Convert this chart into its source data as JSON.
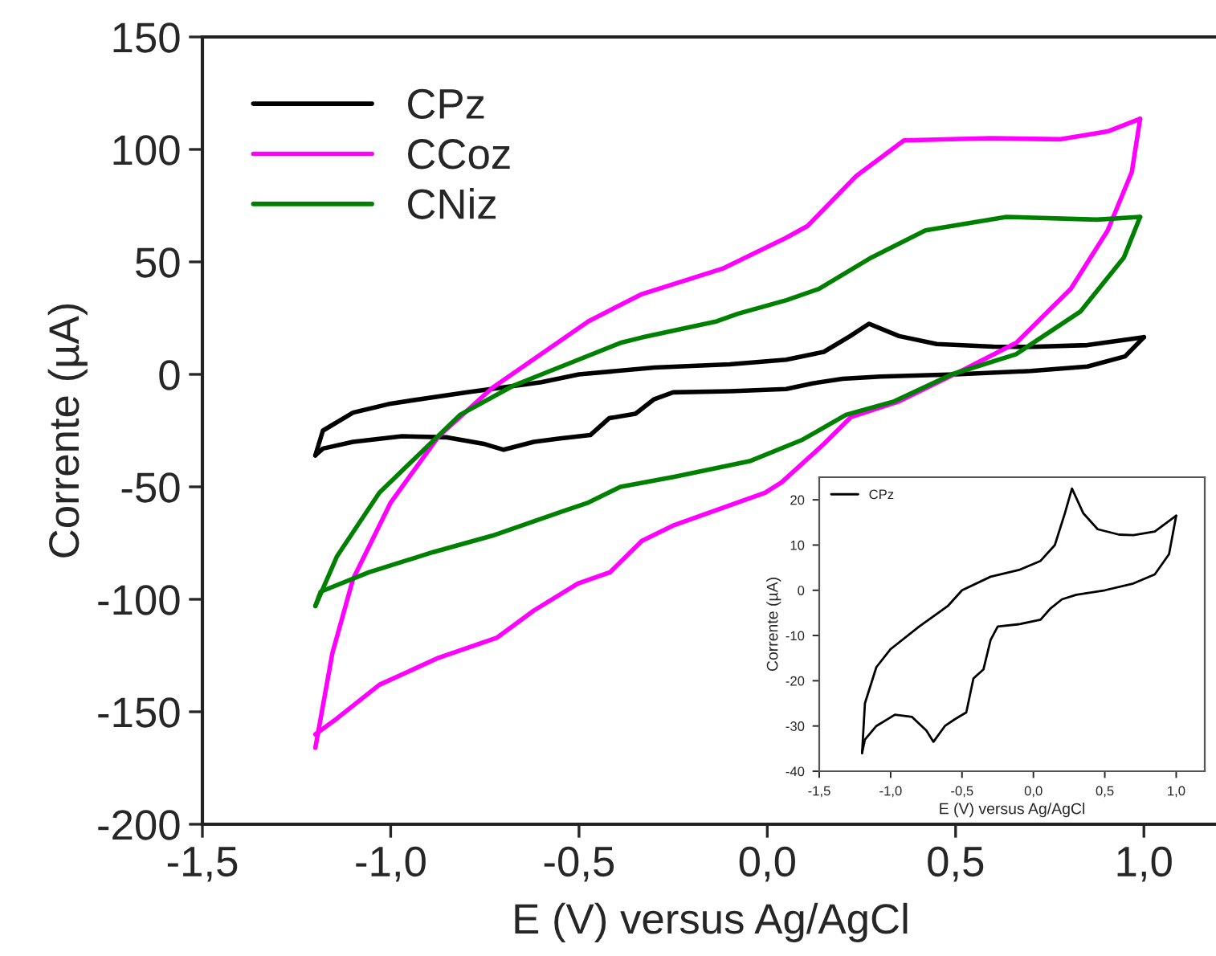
{
  "chart_data": [
    {
      "type": "line",
      "xlabel": "E (V) versus Ag/AgCl",
      "ylabel": "Corrente (µA)",
      "legend": "top left",
      "grid": false,
      "xlim": [
        -1.5,
        1.2
      ],
      "ylim": [
        -200,
        150
      ],
      "xticks": [
        {
          "value": -1.5,
          "label": "-1,5"
        },
        {
          "value": -1.0,
          "label": "-1,0"
        },
        {
          "value": -0.5,
          "label": "-0,5"
        },
        {
          "value": 0.0,
          "label": "0,0"
        },
        {
          "value": 0.5,
          "label": "0,5"
        },
        {
          "value": 1.0,
          "label": "1,0"
        }
      ],
      "yticks": [
        -200,
        -150,
        -100,
        -50,
        0,
        50,
        100,
        150
      ],
      "series": [
        {
          "name": "CPz",
          "color": "#000000",
          "x": [
            -1.2,
            -1.18,
            -1.1,
            -1.0,
            -0.8,
            -0.6,
            -0.5,
            -0.3,
            -0.1,
            0.05,
            0.15,
            0.22,
            0.27,
            0.35,
            0.45,
            0.6,
            0.7,
            0.85,
            1.0
          ],
          "values": [
            -36,
            -25,
            -17,
            -13,
            -8,
            -3.5,
            0,
            3,
            4.5,
            6.5,
            10,
            17,
            22.5,
            17,
            13.5,
            12.3,
            12.2,
            13,
            16.5
          ]
        },
        {
          "color": "#000000",
          "x": [
            -1.2,
            -1.18,
            -1.1,
            -0.97,
            -0.85,
            -0.75,
            -0.7,
            -0.62,
            -0.55,
            -0.47,
            -0.42,
            -0.35,
            -0.3,
            -0.25,
            -0.1,
            0.05,
            0.12,
            0.2,
            0.3,
            0.5,
            0.7,
            0.85,
            0.95,
            1.0
          ],
          "values": [
            -36,
            -33,
            -30,
            -27.5,
            -28,
            -31,
            -33.5,
            -30,
            -28.5,
            -27,
            -19.5,
            -17.5,
            -11,
            -8,
            -7.5,
            -6.5,
            -4,
            -2,
            -1,
            0,
            1.5,
            3.5,
            8,
            16.5
          ]
        },
        {
          "name": "CCoz",
          "color": "#ff00ff",
          "x": [
            -1.2,
            -1.155,
            -1.1,
            -1.0,
            -0.873,
            -0.73,
            -0.475,
            -0.333,
            -0.119,
            0.05,
            0.107,
            0.235,
            0.363,
            0.593,
            0.776,
            0.904,
            0.99
          ],
          "values": [
            -166,
            -124,
            -91,
            -57,
            -27.6,
            -6,
            23.6,
            35.7,
            47,
            60.7,
            66,
            88,
            104,
            105,
            104.5,
            108,
            113.6
          ]
        },
        {
          "color": "#ff00ff",
          "x": [
            -1.2,
            -1.143,
            -1.03,
            -0.873,
            -0.717,
            -0.62,
            -0.503,
            -0.418,
            -0.333,
            -0.247,
            -0.006,
            0.038,
            0.15,
            0.222,
            0.35,
            0.52,
            0.661,
            0.806,
            0.904,
            0.968,
            0.99
          ],
          "values": [
            -160,
            -153,
            -138,
            -126,
            -117,
            -105,
            -93,
            -88,
            -74,
            -67,
            -52.6,
            -48,
            -31,
            -19,
            -12,
            2,
            14,
            38,
            64,
            90,
            113.6
          ]
        },
        {
          "name": "CNiz",
          "color": "#008000",
          "x": [
            -1.2,
            -1.143,
            -1.03,
            -0.816,
            -0.674,
            -0.39,
            -0.333,
            -0.134,
            -0.077,
            0.051,
            0.137,
            0.277,
            0.42,
            0.635,
            0.875,
            0.99
          ],
          "values": [
            -103,
            -81,
            -52.6,
            -18,
            -5,
            14,
            16.4,
            23.6,
            27,
            33,
            38,
            52,
            64,
            70,
            68.8,
            70
          ]
        },
        {
          "color": "#008000",
          "x": [
            -1.2,
            -1.186,
            -1.058,
            -0.887,
            -0.73,
            -0.546,
            -0.475,
            -0.39,
            -0.247,
            -0.047,
            0.094,
            0.209,
            0.337,
            0.49,
            0.661,
            0.832,
            0.947,
            0.99
          ],
          "values": [
            -103,
            -96.6,
            -88,
            -79,
            -71.7,
            -61,
            -57,
            -50,
            -45.5,
            -38.6,
            -29,
            -18,
            -12,
            0,
            9,
            28,
            52,
            70
          ]
        }
      ]
    },
    {
      "type": "line",
      "xlabel": "E (V) versus Ag/AgCl",
      "ylabel": "Corrente (µA)",
      "legend": "top left",
      "grid": false,
      "xlim": [
        -1.5,
        1.2
      ],
      "ylim": [
        -40,
        25
      ],
      "xticks": [
        {
          "value": -1.5,
          "label": "-1,5"
        },
        {
          "value": -1.0,
          "label": "-1,0"
        },
        {
          "value": -0.5,
          "label": "-0,5"
        },
        {
          "value": 0.0,
          "label": "0,0"
        },
        {
          "value": 0.5,
          "label": "0,5"
        },
        {
          "value": 1.0,
          "label": "1,0"
        }
      ],
      "yticks": [
        -40,
        -30,
        -20,
        -10,
        0,
        10,
        20
      ],
      "series": [
        {
          "name": "CPz",
          "color": "#000000",
          "x": [
            -1.2,
            -1.18,
            -1.1,
            -1.0,
            -0.8,
            -0.6,
            -0.5,
            -0.3,
            -0.1,
            0.05,
            0.15,
            0.22,
            0.27,
            0.35,
            0.45,
            0.6,
            0.7,
            0.85,
            1.0
          ],
          "values": [
            -36,
            -25,
            -17,
            -13,
            -8,
            -3.5,
            0,
            3,
            4.5,
            6.5,
            10,
            17,
            22.5,
            17,
            13.5,
            12.3,
            12.2,
            13,
            16.5
          ]
        },
        {
          "color": "#000000",
          "x": [
            -1.2,
            -1.18,
            -1.1,
            -0.97,
            -0.85,
            -0.75,
            -0.7,
            -0.62,
            -0.55,
            -0.47,
            -0.42,
            -0.35,
            -0.3,
            -0.25,
            -0.1,
            0.05,
            0.12,
            0.2,
            0.3,
            0.5,
            0.7,
            0.85,
            0.95,
            1.0
          ],
          "values": [
            -36,
            -33,
            -30,
            -27.5,
            -28,
            -31,
            -33.5,
            -30,
            -28.5,
            -27,
            -19.5,
            -17.5,
            -11,
            -8,
            -7.5,
            -6.5,
            -4,
            -2,
            -1,
            0,
            1.5,
            3.5,
            8,
            16.5
          ]
        }
      ]
    }
  ]
}
